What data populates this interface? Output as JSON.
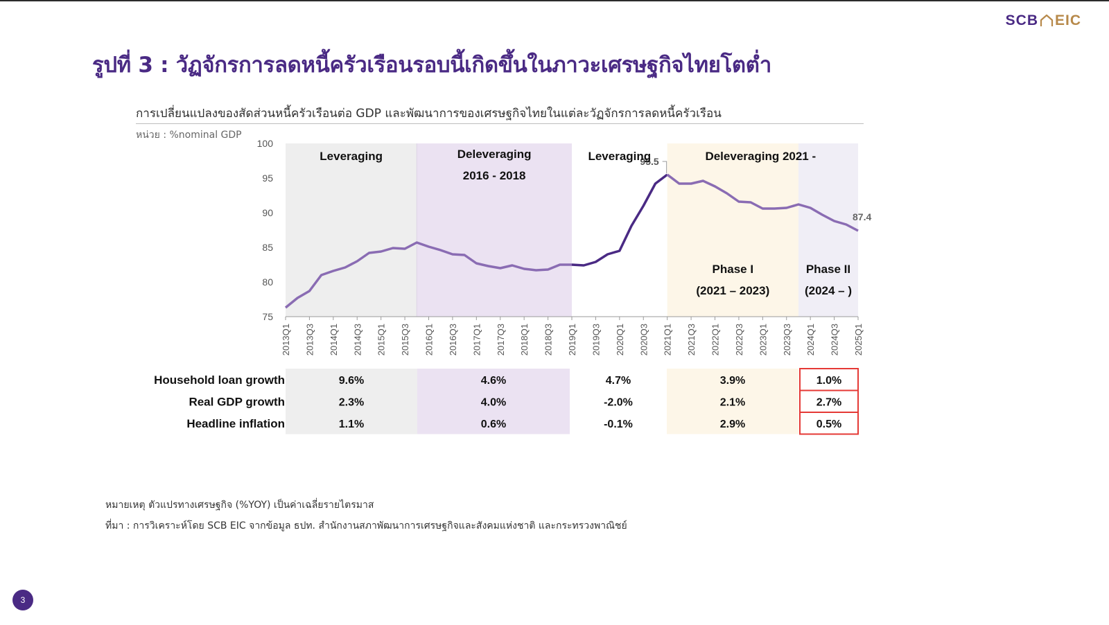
{
  "logo": {
    "left": "SCB",
    "right": "EIC"
  },
  "page_title": "รูปที่ 3 : วัฏจักรการลดหนี้ครัวเรือนรอบนี้เกิดขึ้นในภาวะเศรษฐกิจไทยโตต่ำ",
  "subtitle": "การเปลี่ยนแปลงของสัดส่วนหนี้ครัวเรือนต่อ GDP และพัฒนาการของเศรษฐกิจไทยในแต่ละวัฏจักรการลดหนี้ครัวเรือน",
  "unit": "หน่วย : %nominal GDP",
  "notes": {
    "remark": "หมายเหตุ ตัวแปรทางเศรษฐกิจ (%YOY) เป็นค่าเฉลี่ยรายไตรมาส",
    "source": "ที่มา : การวิเคราะห์โดย SCB EIC จากข้อมูล ธปท. สำนักงานสภาพัฒนาการเศรษฐกิจและสังคมแห่งชาติ และกระทรวงพาณิชย์"
  },
  "page_number": "3",
  "colors": {
    "brand_purple": "#4a2a84",
    "line_light": "#8a6cb3",
    "line_dark": "#4a2a84",
    "band_grey": "#eeeeee",
    "band_lavender": "#ebe2f2",
    "band_cream": "#fdf6e8",
    "band_pale": "#f0eef6",
    "highlight_red": "#e53935",
    "brand_gold": "#b7894a"
  },
  "chart_data": {
    "type": "line",
    "ylim": [
      75,
      100
    ],
    "yticks": [
      75,
      80,
      85,
      90,
      95,
      100
    ],
    "x": [
      "2013Q1",
      "2013Q2",
      "2013Q3",
      "2013Q4",
      "2014Q1",
      "2014Q2",
      "2014Q3",
      "2014Q4",
      "2015Q1",
      "2015Q2",
      "2015Q3",
      "2015Q4",
      "2016Q1",
      "2016Q2",
      "2016Q3",
      "2016Q4",
      "2017Q1",
      "2017Q2",
      "2017Q3",
      "2017Q4",
      "2018Q1",
      "2018Q2",
      "2018Q3",
      "2018Q4",
      "2019Q1",
      "2019Q2",
      "2019Q3",
      "2019Q4",
      "2020Q1",
      "2020Q2",
      "2020Q3",
      "2020Q4",
      "2021Q1",
      "2021Q2",
      "2021Q3",
      "2021Q4",
      "2022Q1",
      "2022Q2",
      "2022Q3",
      "2022Q4",
      "2023Q1",
      "2023Q2",
      "2023Q3",
      "2023Q4",
      "2024Q1",
      "2024Q2",
      "2024Q3",
      "2024Q4",
      "2025Q1"
    ],
    "x_tick_labels": [
      "2013Q1",
      "2013Q3",
      "2014Q1",
      "2014Q3",
      "2015Q1",
      "2015Q3",
      "2016Q1",
      "2016Q3",
      "2017Q1",
      "2017Q3",
      "2018Q1",
      "2018Q3",
      "2019Q1",
      "2019Q3",
      "2020Q1",
      "2020Q3",
      "2021Q1",
      "2021Q3",
      "2022Q1",
      "2022Q3",
      "2023Q1",
      "2023Q3",
      "2024Q1",
      "2024Q3",
      "2025Q1"
    ],
    "values": [
      76.3,
      77.7,
      78.7,
      81.0,
      81.6,
      82.1,
      83.0,
      84.2,
      84.4,
      84.9,
      84.8,
      85.7,
      85.1,
      84.6,
      84.0,
      83.9,
      82.7,
      82.3,
      82.0,
      82.4,
      81.9,
      81.7,
      81.8,
      82.5,
      82.5,
      82.4,
      82.9,
      84.0,
      84.5,
      88.1,
      91.0,
      94.2,
      95.5,
      94.2,
      94.2,
      94.6,
      93.8,
      92.8,
      91.6,
      91.5,
      90.6,
      90.6,
      90.7,
      91.2,
      90.7,
      89.7,
      88.8,
      88.3,
      87.4
    ],
    "dark_segment_range": [
      "2019Q1",
      "2021Q1"
    ],
    "annotations": [
      {
        "x": "2021Q1",
        "label": "95.5"
      },
      {
        "x": "2025Q1",
        "label": "87.4"
      }
    ],
    "phases": [
      {
        "name": "leveraging-1",
        "from": "2013Q1",
        "to": "2015Q4",
        "color": "#eeeeee",
        "lines": [
          "Leveraging"
        ]
      },
      {
        "name": "deleveraging-1",
        "from": "2015Q4",
        "to": "2019Q1",
        "color": "#ebe2f2",
        "lines": [
          "Deleveraging",
          "2016 - 2018"
        ]
      },
      {
        "name": "leveraging-2",
        "from": "2019Q1",
        "to": "2021Q1",
        "color": "#ffffff",
        "lines": [
          "Leveraging"
        ]
      },
      {
        "name": "phase-1",
        "from": "2021Q1",
        "to": "2023Q4",
        "color": "#fdf6e8",
        "lines": [
          "Phase I",
          "(2021 – 2023)"
        ]
      },
      {
        "name": "phase-2",
        "from": "2023Q4",
        "to": "2025Q1",
        "color": "#f0eef6",
        "lines": [
          "Phase II",
          "(2024 – )"
        ]
      }
    ],
    "top_label_deleveraging_2021": "Deleveraging 2021 -",
    "table": {
      "row_headers": [
        "Household loan growth",
        "Real GDP growth",
        "Headline inflation"
      ],
      "columns": [
        {
          "phase": "leveraging-1",
          "values": [
            "9.6%",
            "2.3%",
            "1.1%"
          ]
        },
        {
          "phase": "deleveraging-1",
          "values": [
            "4.6%",
            "4.0%",
            "0.6%"
          ]
        },
        {
          "phase": "leveraging-2",
          "values": [
            "4.7%",
            "-2.0%",
            "-0.1%"
          ]
        },
        {
          "phase": "phase-1",
          "values": [
            "3.9%",
            "2.1%",
            "2.9%"
          ]
        },
        {
          "phase": "phase-2",
          "values": [
            "1.0%",
            "2.7%",
            "0.5%"
          ],
          "highlight": true
        }
      ]
    }
  }
}
